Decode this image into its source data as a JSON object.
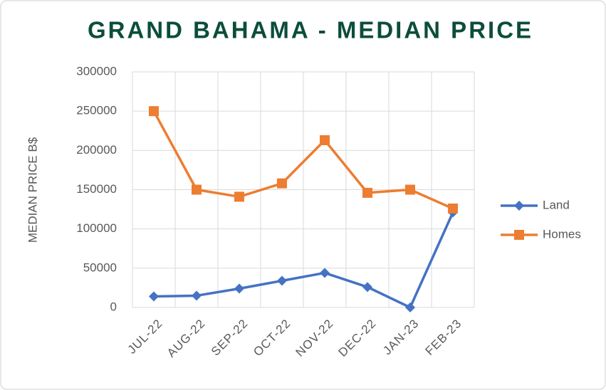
{
  "chart_data": {
    "type": "line",
    "title": "GRAND BAHAMA - MEDIAN PRICE",
    "y_label": "MEDIAN PRICE B$",
    "categories": [
      "JUL-22",
      "AUG-22",
      "SEP-22",
      "OCT-22",
      "NOV-22",
      "DEC-22",
      "JAN-23",
      "FEB-23"
    ],
    "series": [
      {
        "name": "Land",
        "color": "#4472c4",
        "marker": "diamond",
        "values": [
          14000,
          15000,
          24000,
          34000,
          44000,
          26000,
          0,
          121000
        ]
      },
      {
        "name": "Homes",
        "color": "#ed7d31",
        "marker": "square",
        "values": [
          250000,
          150000,
          141000,
          158000,
          213000,
          146000,
          150000,
          126000
        ]
      }
    ],
    "ylim": [
      0,
      300000
    ],
    "yticks": [
      0,
      50000,
      100000,
      150000,
      200000,
      250000,
      300000
    ],
    "grid": true,
    "legend": "right"
  }
}
